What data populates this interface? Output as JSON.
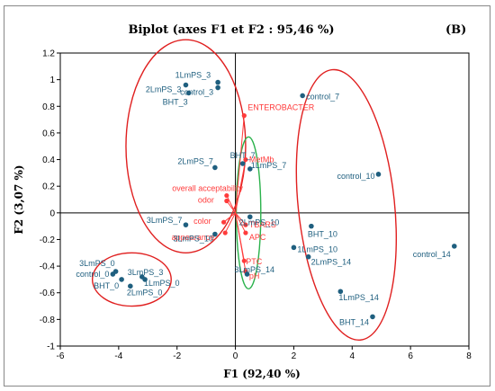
{
  "chart_data": {
    "type": "scatter",
    "title": "Biplot  (axes F1 et F2 : 95,46 %)",
    "panel_label": "(B)",
    "xlabel": "F1 (92,40 %)",
    "ylabel": "F2 (3,07 %)",
    "xlim": [
      -6,
      8
    ],
    "ylim": [
      -1,
      1.2
    ],
    "xticks": [
      -6,
      -4,
      -2,
      0,
      2,
      4,
      6,
      8
    ],
    "yticks": [
      -1,
      -0.8,
      -0.6,
      -0.4,
      -0.2,
      0,
      0.2,
      0.4,
      0.6,
      0.8,
      1,
      1.2
    ],
    "grid": false,
    "colors": {
      "observations": "#1f5f7f",
      "variables": "#ff3b3b",
      "group_ellipse": "#e02020",
      "variable_ellipse": "#2bb24c",
      "axis": "#000000"
    },
    "observations": [
      {
        "label": "1LmPS_3",
        "x": -0.6,
        "y": 0.98
      },
      {
        "label": "2LmPS_3",
        "x": -1.7,
        "y": 0.96
      },
      {
        "label": "control_3",
        "x": -0.6,
        "y": 0.94
      },
      {
        "label": "BHT_3",
        "x": -1.6,
        "y": 0.9
      },
      {
        "label": "2LmPS_7",
        "x": -0.7,
        "y": 0.34
      },
      {
        "label": "BHT_7",
        "x": 0.25,
        "y": 0.37
      },
      {
        "label": "1LmPS_7",
        "x": 0.5,
        "y": 0.33
      },
      {
        "label": "3LmPS_7",
        "x": -1.7,
        "y": -0.09
      },
      {
        "label": "3LmPS_10",
        "x": -0.7,
        "y": -0.16
      },
      {
        "label": "2LmPS_10",
        "x": 0.5,
        "y": -0.03
      },
      {
        "label": "3LmPS_14",
        "x": 0.4,
        "y": -0.46
      },
      {
        "label": "control_7",
        "x": 2.3,
        "y": 0.88
      },
      {
        "label": "control_10",
        "x": 4.9,
        "y": 0.29
      },
      {
        "label": "BHT_10",
        "x": 2.6,
        "y": -0.1
      },
      {
        "label": "1LmPS_10",
        "x": 2.0,
        "y": -0.26
      },
      {
        "label": "2LmPS_14",
        "x": 2.5,
        "y": -0.33
      },
      {
        "label": "1LmPS_14",
        "x": 3.6,
        "y": -0.59
      },
      {
        "label": "BHT_14",
        "x": 4.7,
        "y": -0.78
      },
      {
        "label": "control_14",
        "x": 7.5,
        "y": -0.25
      },
      {
        "label": "3LmPS_0",
        "x": -4.1,
        "y": -0.44
      },
      {
        "label": "control_0",
        "x": -4.2,
        "y": -0.46
      },
      {
        "label": "3LmPS_3",
        "x": -3.2,
        "y": -0.48
      },
      {
        "label": "BHT_0",
        "x": -3.9,
        "y": -0.5
      },
      {
        "label": "2LmPS_0",
        "x": -3.6,
        "y": -0.55
      },
      {
        "label": "1LmPS_0",
        "x": -3.1,
        "y": -0.5
      }
    ],
    "variables": [
      {
        "label": "ENTEROBACTER",
        "x": 0.3,
        "y": 0.73
      },
      {
        "label": "MetMb",
        "x": 0.35,
        "y": 0.4
      },
      {
        "label": "overall acceptability",
        "x": -0.3,
        "y": 0.13
      },
      {
        "label": "odor",
        "x": -0.3,
        "y": 0.09
      },
      {
        "label": "color",
        "x": -0.4,
        "y": -0.07
      },
      {
        "label": "appearance",
        "x": -0.35,
        "y": -0.15
      },
      {
        "label": "TBARS",
        "x": 0.35,
        "y": -0.09
      },
      {
        "label": "APC",
        "x": 0.35,
        "y": -0.15
      },
      {
        "label": "PTC",
        "x": 0.3,
        "y": -0.36
      },
      {
        "label": "pH",
        "x": 0.35,
        "y": -0.44
      }
    ],
    "group_ellipses": [
      {
        "cx": -1.7,
        "cy": 0.5,
        "rx": 2.05,
        "ry": 0.8,
        "angle_deg": 0,
        "color": "red"
      },
      {
        "cx": -3.55,
        "cy": -0.5,
        "rx": 1.35,
        "ry": 0.2,
        "angle_deg": 0,
        "color": "red"
      },
      {
        "cx": 3.8,
        "cy": 0.06,
        "rx": 1.65,
        "ry": 1.02,
        "angle_deg": -6,
        "color": "red"
      },
      {
        "cx": 0.45,
        "cy": 0.0,
        "rx": 0.42,
        "ry": 0.57,
        "angle_deg": 0,
        "color": "green"
      }
    ]
  }
}
